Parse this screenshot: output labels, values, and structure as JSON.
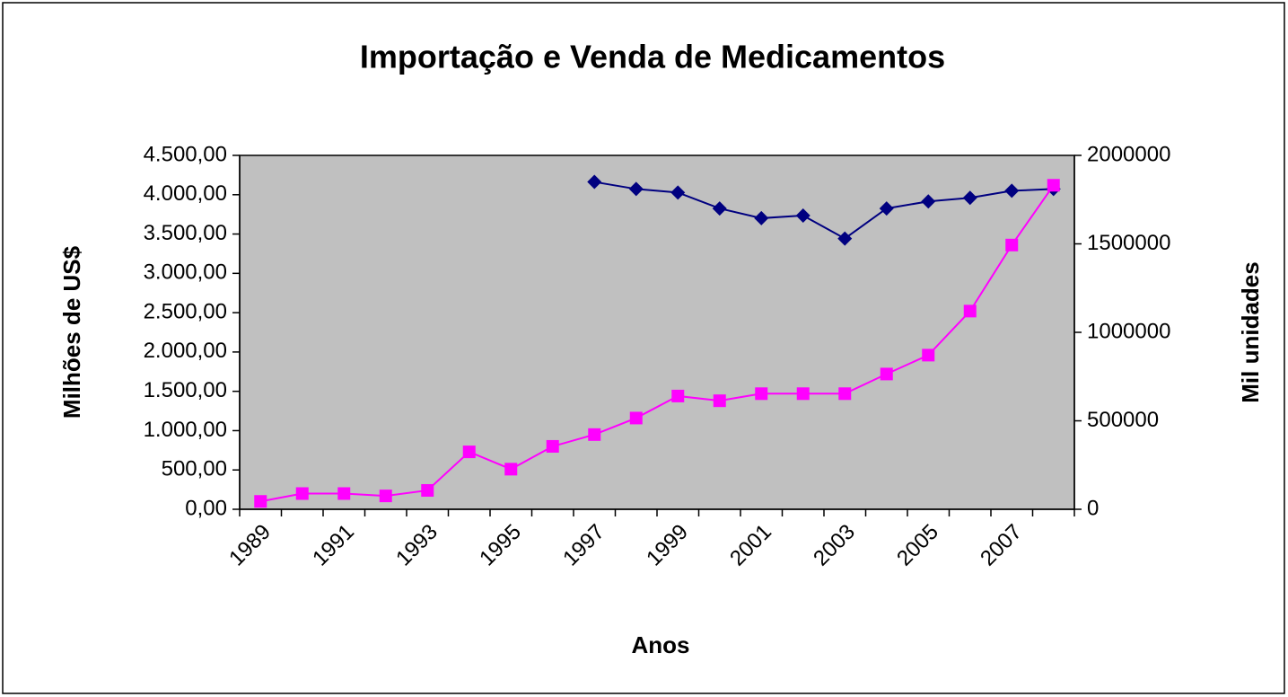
{
  "chart_data": {
    "type": "line",
    "title": "Importação e Venda de Medicamentos",
    "xlabel": "Anos",
    "ylabel": "Milhões de US$",
    "y2label": "Mil unidades",
    "categories": [
      "1989",
      null,
      "1991",
      null,
      "1993",
      null,
      "1995",
      null,
      "1997",
      null,
      "1999",
      null,
      "2001",
      null,
      "2003",
      null,
      "2005",
      null,
      "2007",
      null
    ],
    "series": [
      {
        "color": "#000080",
        "marker": "diamond",
        "axis": "y2",
        "values": [
          null,
          null,
          null,
          null,
          null,
          null,
          null,
          null,
          1850000,
          1810000,
          1790000,
          1700000,
          1645000,
          1660000,
          1530000,
          1700000,
          1740000,
          1760000,
          1800000,
          1810000
        ]
      },
      {
        "color": "#ff00ff",
        "marker": "square",
        "axis": "y",
        "values": [
          100,
          200,
          200,
          170,
          240,
          730,
          510,
          800,
          950,
          1160,
          1440,
          1380,
          1470,
          1470,
          1470,
          1720,
          1960,
          2520,
          3360,
          4120
        ]
      }
    ],
    "ylim": [
      0,
      4500
    ],
    "yticks": [
      {
        "value": 0,
        "label": "0,00"
      },
      {
        "value": 500,
        "label": "500,00"
      },
      {
        "value": 1000,
        "label": "1.000,00"
      },
      {
        "value": 1500,
        "label": "1.500,00"
      },
      {
        "value": 2000,
        "label": "2.000,00"
      },
      {
        "value": 2500,
        "label": "2.500,00"
      },
      {
        "value": 3000,
        "label": "3.000,00"
      },
      {
        "value": 3500,
        "label": "3.500,00"
      },
      {
        "value": 4000,
        "label": "4.000,00"
      },
      {
        "value": 4500,
        "label": "4.500,00"
      }
    ],
    "y2lim": [
      0,
      2000000
    ],
    "y2ticks": [
      0,
      500000,
      1000000,
      1500000,
      2000000
    ],
    "plot_background": "#c0c0c0",
    "grid": false
  }
}
